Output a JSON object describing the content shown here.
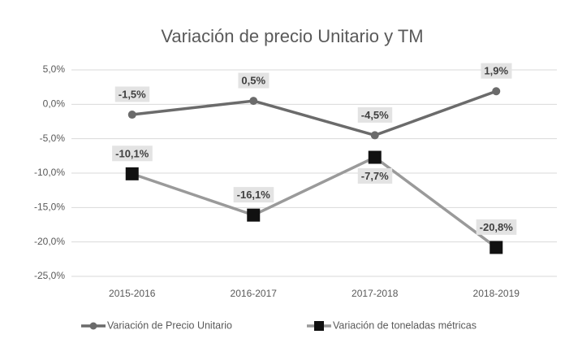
{
  "chart_data": {
    "type": "line",
    "title": "Variación de precio Unitario y TM",
    "categories": [
      "2015-2016",
      "2016-2017",
      "2017-2018",
      "2018-2019"
    ],
    "series": [
      {
        "name": "Variación de Precio Unitario",
        "color": "#6b6b6b",
        "marker": "circle",
        "marker_color": "#6b6b6b",
        "values": [
          -1.5,
          0.5,
          -4.5,
          1.9
        ],
        "value_labels": [
          "-1,5%",
          "0,5%",
          "-4,5%",
          "1,9%"
        ]
      },
      {
        "name": "Variación de toneladas métricas",
        "color": "#9a9a9a",
        "marker": "square",
        "marker_color": "#111111",
        "values": [
          -10.1,
          -16.1,
          -7.7,
          -20.8
        ],
        "value_labels": [
          "-10,1%",
          "-16,1%",
          "-7,7%",
          "-20,8%"
        ]
      }
    ],
    "ylim": [
      -25,
      5
    ],
    "yticks": [
      {
        "value": 5,
        "label": "5,0%"
      },
      {
        "value": 0,
        "label": "0,0%"
      },
      {
        "value": -5,
        "label": "-5,0%"
      },
      {
        "value": -10,
        "label": "-10,0%"
      },
      {
        "value": -15,
        "label": "-15,0%"
      },
      {
        "value": -20,
        "label": "-20,0%"
      },
      {
        "value": -25,
        "label": "-25,0%"
      }
    ],
    "grid": true
  }
}
